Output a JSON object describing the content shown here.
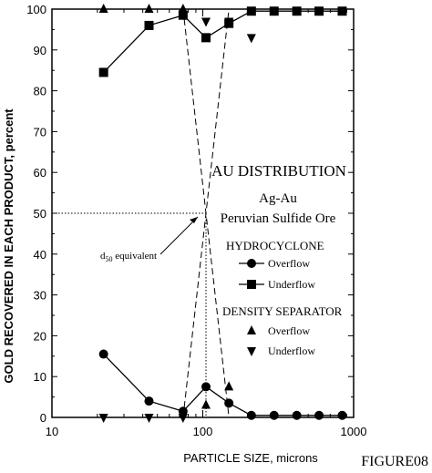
{
  "figure_label": "FIGURE08",
  "chart_data": {
    "type": "scatter",
    "xlabel": "PARTICLE SIZE, microns",
    "ylabel": "GOLD RECOVERED IN EACH PRODUCT, percent",
    "x_scale": "log",
    "xlim": [
      10,
      1000
    ],
    "ylim": [
      0,
      100
    ],
    "x_ticks": [
      10,
      100,
      1000
    ],
    "y_ticks": [
      0,
      10,
      20,
      30,
      40,
      50,
      60,
      70,
      80,
      90,
      100
    ],
    "grid": false,
    "series": [
      {
        "name": "Overflow",
        "group": "HYDROCYCLONE",
        "marker": "circle",
        "connected": true,
        "x": [
          22,
          44,
          74,
          105,
          149,
          210,
          297,
          420,
          590,
          840
        ],
        "y": [
          15.5,
          4,
          1.5,
          7.5,
          3.5,
          0.5,
          0.5,
          0.5,
          0.5,
          0.5
        ]
      },
      {
        "name": "Underflow",
        "group": "HYDROCYCLONE",
        "marker": "square",
        "connected": true,
        "x": [
          22,
          44,
          74,
          105,
          149,
          210,
          297,
          420,
          590,
          840
        ],
        "y": [
          84.5,
          96,
          98.5,
          93,
          96.5,
          99.5,
          99.5,
          99.5,
          99.5,
          99.5
        ]
      },
      {
        "name": "Overflow",
        "group": "DENSITY SEPARATOR",
        "marker": "triangle-up",
        "connected": false,
        "x": [
          22,
          44,
          74,
          105,
          149
        ],
        "y": [
          100,
          100,
          100,
          3,
          7.5
        ]
      },
      {
        "name": "Underflow",
        "group": "DENSITY SEPARATOR",
        "marker": "triangle-down",
        "connected": false,
        "x": [
          22,
          44,
          74,
          105,
          149,
          210
        ],
        "y": [
          0,
          0,
          0,
          97,
          97,
          93
        ]
      }
    ],
    "crossing_lines": [
      {
        "x": [
          74,
          105,
          149
        ],
        "y": [
          100,
          50,
          0
        ]
      },
      {
        "x": [
          74,
          105,
          149
        ],
        "y": [
          0,
          50,
          100
        ]
      }
    ],
    "d50_guide": {
      "x": 105,
      "y": 50
    },
    "annotations": {
      "title": "AU DISTRIBUTION",
      "subtitle1": "Ag-Au",
      "subtitle2": "Peruvian Sulfide Ore",
      "group1": "HYDROCYCLONE",
      "group2": "DENSITY SEPARATOR",
      "d50_prefix": "d",
      "d50_sub": "50",
      "d50_suffix": " equivalent"
    }
  }
}
